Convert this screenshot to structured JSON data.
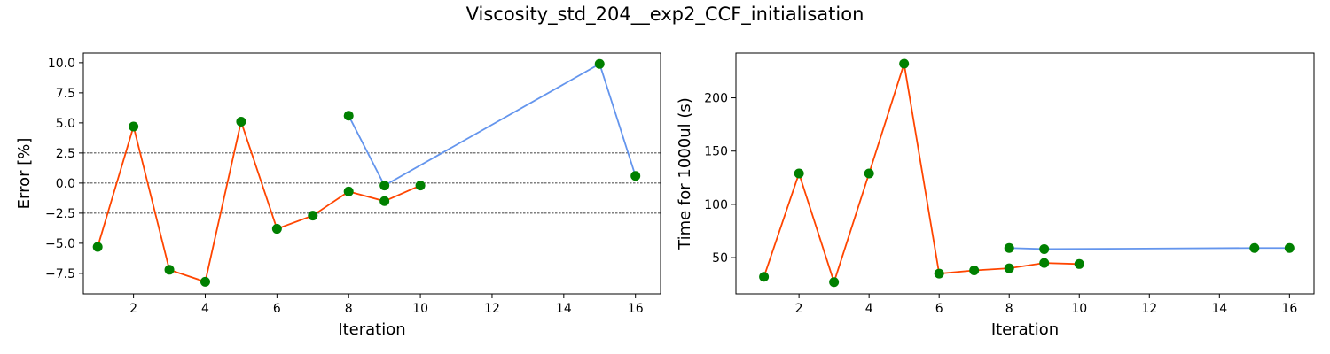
{
  "figure": {
    "suptitle": "Viscosity_std_204__exp2_CCF_initialisation"
  },
  "colors": {
    "series_a": "#FF4500",
    "series_b": "#6495ED",
    "markers": "#008000",
    "reference_lines": "#000000"
  },
  "chart_data": [
    {
      "type": "line",
      "title": "",
      "xlabel": "Iteration",
      "ylabel": "Error [%]",
      "xlim": [
        0.6,
        16.7
      ],
      "ylim": [
        -9.2,
        10.8
      ],
      "xticks": [
        2,
        4,
        6,
        8,
        10,
        12,
        14,
        16
      ],
      "yticks": [
        -7.5,
        -5.0,
        -2.5,
        0.0,
        2.5,
        5.0,
        7.5,
        10.0
      ],
      "ytick_labels": [
        "−7.5",
        "−5.0",
        "−2.5",
        "0.0",
        "2.5",
        "5.0",
        "7.5",
        "10.0"
      ],
      "reference_lines": [
        2.5,
        0.0,
        -2.5
      ],
      "grid": false,
      "series": [
        {
          "color": "#FF4500",
          "x": [
            1,
            2,
            3,
            4,
            5,
            6,
            7,
            8,
            9,
            10
          ],
          "y": [
            -5.3,
            4.7,
            -7.2,
            -8.2,
            5.1,
            -3.8,
            -2.7,
            -0.7,
            -1.5,
            -0.2
          ]
        },
        {
          "color": "#6495ED",
          "x": [
            8,
            9,
            15,
            16
          ],
          "y": [
            5.6,
            -0.2,
            9.9,
            0.6
          ]
        }
      ]
    },
    {
      "type": "line",
      "title": "",
      "xlabel": "Iteration",
      "ylabel": "Time for 1000ul (s)",
      "xlim": [
        0.2,
        16.7
      ],
      "ylim": [
        16,
        242
      ],
      "xticks": [
        2,
        4,
        6,
        8,
        10,
        12,
        14,
        16
      ],
      "yticks": [
        50,
        100,
        150,
        200
      ],
      "ytick_labels": [
        "50",
        "100",
        "150",
        "200"
      ],
      "reference_lines": [],
      "grid": false,
      "series": [
        {
          "color": "#FF4500",
          "x": [
            1,
            2,
            3,
            4,
            5,
            6,
            7,
            8,
            9,
            10
          ],
          "y": [
            32,
            129,
            27,
            129,
            232,
            35,
            38,
            40,
            45,
            44
          ]
        },
        {
          "color": "#6495ED",
          "x": [
            8,
            9,
            15,
            16
          ],
          "y": [
            59,
            58,
            59,
            59
          ]
        }
      ]
    }
  ]
}
